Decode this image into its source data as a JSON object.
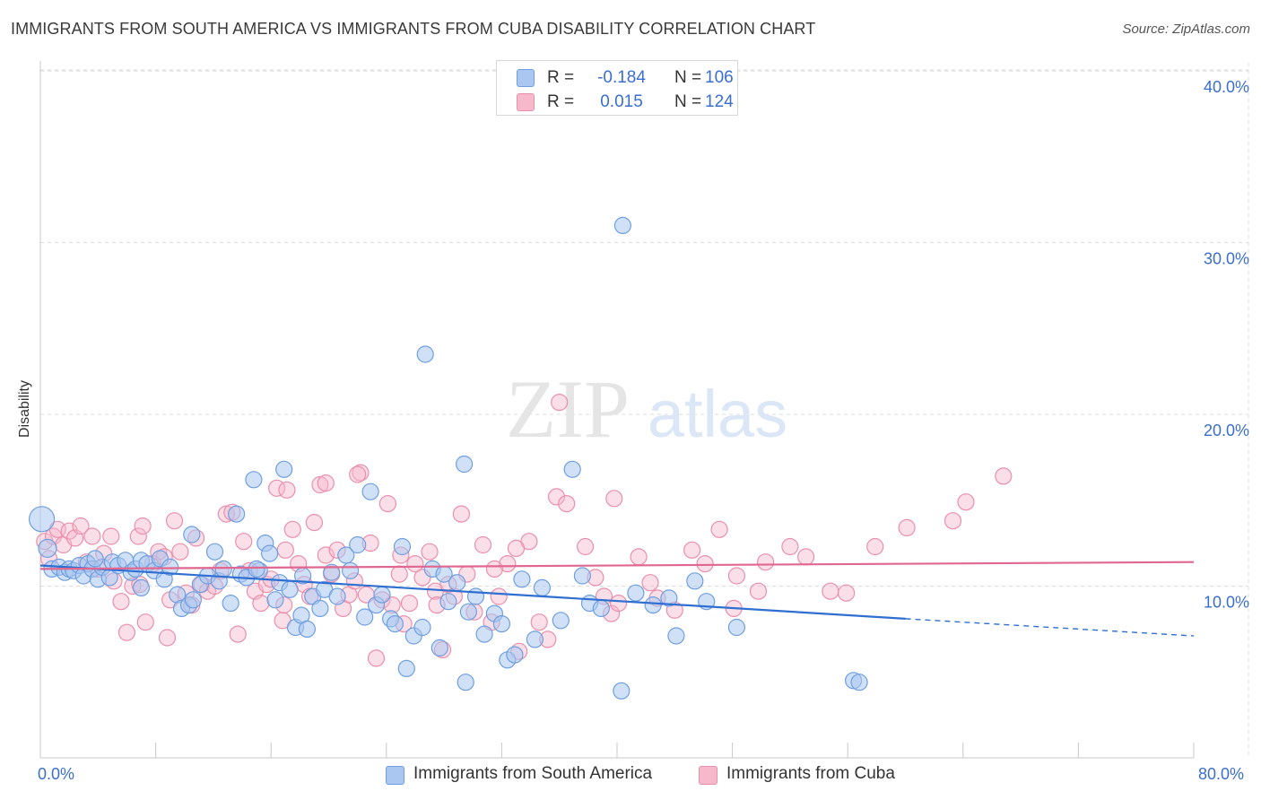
{
  "header": {
    "title": "IMMIGRANTS FROM SOUTH AMERICA VS IMMIGRANTS FROM CUBA DISABILITY CORRELATION CHART",
    "source": "Source: ZipAtlas.com"
  },
  "watermark": {
    "zip": "ZIP",
    "atlas": "atlas"
  },
  "colors": {
    "blue_fill": "#a9c7f0",
    "blue_stroke": "#6f9fe0",
    "blue_line": "#2f6fd1",
    "pink_fill": "#f6b9cc",
    "pink_stroke": "#ea8fab",
    "pink_line": "#e0678f",
    "axis_text": "#3a6ecf",
    "grid": "#dddddd"
  },
  "legend_top": {
    "rows": [
      {
        "r_label": "R =",
        "r_value": "-0.184",
        "n_label": "N =",
        "n_value": "106"
      },
      {
        "r_label": "R =",
        "r_value": "0.015",
        "n_label": "N =",
        "n_value": "124"
      }
    ]
  },
  "legend_bottom": {
    "items": [
      {
        "label": "Immigrants from South America"
      },
      {
        "label": "Immigrants from Cuba"
      }
    ]
  },
  "chart_data": {
    "type": "scatter",
    "title": "IMMIGRANTS FROM SOUTH AMERICA VS IMMIGRANTS FROM CUBA DISABILITY CORRELATION CHART",
    "xlabel": "",
    "ylabel": "Disability",
    "xlim": [
      0,
      80
    ],
    "ylim": [
      0,
      42
    ],
    "x_tick_labels": [
      "0.0%",
      "80.0%"
    ],
    "y_ticks": [
      10,
      20,
      30,
      40
    ],
    "y_tick_labels": [
      "10.0%",
      "20.0%",
      "30.0%",
      "40.0%"
    ],
    "grid": true,
    "legend_position": "top-center",
    "series": [
      {
        "name": "Immigrants from South America",
        "color": "#a9c7f0",
        "trend": {
          "x0": 0,
          "y0": 11.2,
          "x1": 60,
          "y1": 8.1,
          "dash_to_x": 80,
          "dash_to_y": 7.1
        },
        "points": [
          [
            0.1,
            13.9,
            14
          ],
          [
            0.5,
            12.2,
            10
          ],
          [
            0.8,
            11.0,
            9
          ],
          [
            1.3,
            11.1,
            9
          ],
          [
            1.7,
            10.8,
            9
          ],
          [
            2.0,
            11.0,
            9
          ],
          [
            2.3,
            10.9,
            9
          ],
          [
            2.7,
            11.2,
            9
          ],
          [
            3.0,
            10.6,
            9
          ],
          [
            3.3,
            11.3,
            9
          ],
          [
            3.6,
            11.0,
            9
          ],
          [
            4.0,
            10.4,
            9
          ],
          [
            4.3,
            11.1,
            9
          ],
          [
            4.8,
            10.5,
            9
          ],
          [
            5.0,
            11.4,
            9
          ],
          [
            5.4,
            11.2,
            9
          ],
          [
            5.9,
            11.5,
            9
          ],
          [
            6.3,
            10.8,
            9
          ],
          [
            6.6,
            11.0,
            9
          ],
          [
            7.0,
            11.5,
            9
          ],
          [
            7.4,
            11.3,
            9
          ],
          [
            7.9,
            10.9,
            9
          ],
          [
            8.3,
            11.6,
            9
          ],
          [
            8.6,
            10.4,
            9
          ],
          [
            9.0,
            11.1,
            9
          ],
          [
            9.5,
            9.5,
            9
          ],
          [
            9.8,
            8.7,
            9
          ],
          [
            10.3,
            8.9,
            9
          ],
          [
            10.6,
            9.2,
            9
          ],
          [
            11.1,
            10.1,
            9
          ],
          [
            11.6,
            10.6,
            9
          ],
          [
            12.1,
            12.0,
            9
          ],
          [
            12.4,
            10.3,
            9
          ],
          [
            12.7,
            11.0,
            9
          ],
          [
            13.2,
            9.0,
            9
          ],
          [
            13.6,
            14.2,
            9
          ],
          [
            13.9,
            10.7,
            9
          ],
          [
            14.3,
            10.5,
            9
          ],
          [
            14.8,
            16.2,
            9
          ],
          [
            15.2,
            10.9,
            9
          ],
          [
            15.6,
            12.5,
            9
          ],
          [
            15.9,
            11.9,
            9
          ],
          [
            16.3,
            9.2,
            9
          ],
          [
            16.6,
            10.2,
            9
          ],
          [
            16.9,
            16.8,
            9
          ],
          [
            17.3,
            9.8,
            9
          ],
          [
            17.7,
            7.6,
            9
          ],
          [
            18.1,
            8.3,
            9
          ],
          [
            18.5,
            7.5,
            9
          ],
          [
            18.9,
            9.4,
            9
          ],
          [
            19.4,
            8.7,
            9
          ],
          [
            19.7,
            9.8,
            9
          ],
          [
            20.2,
            10.8,
            9
          ],
          [
            20.6,
            9.4,
            9
          ],
          [
            21.2,
            11.8,
            9
          ],
          [
            21.5,
            10.9,
            9
          ],
          [
            22.0,
            12.4,
            9
          ],
          [
            22.5,
            8.2,
            9
          ],
          [
            22.9,
            15.5,
            9
          ],
          [
            23.3,
            8.9,
            9
          ],
          [
            23.7,
            9.5,
            9
          ],
          [
            24.3,
            8.1,
            9
          ],
          [
            24.6,
            7.8,
            9
          ],
          [
            25.1,
            12.3,
            9
          ],
          [
            25.4,
            5.2,
            9
          ],
          [
            25.9,
            7.1,
            9
          ],
          [
            26.5,
            7.6,
            9
          ],
          [
            27.2,
            11.0,
            9
          ],
          [
            27.7,
            6.4,
            9
          ],
          [
            28.0,
            10.7,
            9
          ],
          [
            28.3,
            9.1,
            9
          ],
          [
            28.9,
            10.2,
            9
          ],
          [
            29.5,
            4.4,
            9
          ],
          [
            29.7,
            8.5,
            9
          ],
          [
            30.2,
            9.4,
            9
          ],
          [
            30.8,
            7.2,
            9
          ],
          [
            31.5,
            8.4,
            9
          ],
          [
            32.0,
            7.8,
            9
          ],
          [
            32.4,
            5.7,
            9
          ],
          [
            32.9,
            6.0,
            9
          ],
          [
            33.4,
            10.4,
            9
          ],
          [
            34.3,
            6.9,
            9
          ],
          [
            34.8,
            9.9,
            9
          ],
          [
            36.1,
            8.0,
            9
          ],
          [
            36.9,
            16.8,
            9
          ],
          [
            37.6,
            10.6,
            9
          ],
          [
            38.1,
            9.0,
            9
          ],
          [
            38.9,
            8.7,
            9
          ],
          [
            40.3,
            3.9,
            9
          ],
          [
            41.3,
            9.6,
            9
          ],
          [
            42.5,
            8.9,
            9
          ],
          [
            43.6,
            9.3,
            9
          ],
          [
            44.1,
            7.1,
            9
          ],
          [
            45.4,
            10.3,
            9
          ],
          [
            46.2,
            9.1,
            9
          ],
          [
            48.3,
            7.6,
            9
          ],
          [
            26.7,
            23.5,
            9
          ],
          [
            40.4,
            31.0,
            9
          ],
          [
            29.4,
            17.1,
            9
          ],
          [
            56.4,
            4.5,
            9
          ],
          [
            56.8,
            4.4,
            9
          ],
          [
            10.5,
            13.0,
            9
          ],
          [
            7.0,
            9.9,
            9
          ],
          [
            15.0,
            11.0,
            9
          ],
          [
            3.8,
            11.6,
            9
          ],
          [
            18.2,
            10.6,
            9
          ]
        ]
      },
      {
        "name": "Immigrants from Cuba",
        "color": "#f6b9cc",
        "trend": {
          "x0": 0,
          "y0": 11.0,
          "x1": 80,
          "y1": 11.4
        },
        "points": [
          [
            0.3,
            12.6,
            9
          ],
          [
            0.6,
            11.6,
            9
          ],
          [
            0.9,
            12.9,
            9
          ],
          [
            1.2,
            13.3,
            9
          ],
          [
            1.6,
            12.4,
            9
          ],
          [
            2.0,
            13.2,
            9
          ],
          [
            2.4,
            12.8,
            9
          ],
          [
            2.8,
            13.5,
            9
          ],
          [
            3.2,
            11.4,
            9
          ],
          [
            3.6,
            12.9,
            9
          ],
          [
            4.0,
            11.0,
            9
          ],
          [
            4.4,
            11.9,
            9
          ],
          [
            4.9,
            12.9,
            9
          ],
          [
            5.1,
            10.3,
            9
          ],
          [
            5.6,
            9.1,
            9
          ],
          [
            6.0,
            7.3,
            9
          ],
          [
            6.4,
            10.0,
            9
          ],
          [
            6.8,
            12.9,
            9
          ],
          [
            7.1,
            13.5,
            9
          ],
          [
            7.3,
            7.9,
            9
          ],
          [
            7.8,
            11.3,
            9
          ],
          [
            8.2,
            12.0,
            9
          ],
          [
            8.6,
            11.7,
            9
          ],
          [
            9.0,
            9.2,
            9
          ],
          [
            9.3,
            13.8,
            9
          ],
          [
            9.7,
            12.0,
            9
          ],
          [
            10.1,
            9.6,
            9
          ],
          [
            10.5,
            8.9,
            9
          ],
          [
            10.8,
            12.8,
            9
          ],
          [
            11.2,
            10.1,
            9
          ],
          [
            11.6,
            9.7,
            9
          ],
          [
            12.1,
            10.0,
            9
          ],
          [
            12.5,
            10.9,
            9
          ],
          [
            12.9,
            14.2,
            9
          ],
          [
            13.3,
            14.3,
            9
          ],
          [
            13.7,
            7.2,
            9
          ],
          [
            14.1,
            12.6,
            9
          ],
          [
            14.5,
            10.9,
            9
          ],
          [
            14.9,
            9.7,
            9
          ],
          [
            15.3,
            9.0,
            9
          ],
          [
            15.7,
            10.1,
            9
          ],
          [
            16.0,
            10.4,
            9
          ],
          [
            16.4,
            15.7,
            9
          ],
          [
            16.8,
            8.0,
            9
          ],
          [
            17.1,
            15.6,
            9
          ],
          [
            17.5,
            13.3,
            9
          ],
          [
            17.9,
            11.3,
            9
          ],
          [
            18.3,
            10.1,
            9
          ],
          [
            18.7,
            9.4,
            9
          ],
          [
            19.0,
            13.7,
            9
          ],
          [
            19.4,
            15.9,
            9
          ],
          [
            19.8,
            11.8,
            9
          ],
          [
            20.2,
            10.7,
            9
          ],
          [
            20.6,
            12.1,
            9
          ],
          [
            21.0,
            8.7,
            9
          ],
          [
            21.4,
            9.5,
            9
          ],
          [
            21.8,
            10.3,
            9
          ],
          [
            22.2,
            16.6,
            9
          ],
          [
            22.6,
            9.5,
            9
          ],
          [
            22.9,
            12.5,
            9
          ],
          [
            23.3,
            5.8,
            9
          ],
          [
            23.7,
            9.2,
            9
          ],
          [
            24.1,
            14.8,
            9
          ],
          [
            24.4,
            8.9,
            9
          ],
          [
            24.9,
            10.7,
            9
          ],
          [
            25.2,
            7.8,
            9
          ],
          [
            25.6,
            9.0,
            9
          ],
          [
            26.0,
            11.3,
            9
          ],
          [
            26.5,
            10.5,
            9
          ],
          [
            27.0,
            12.0,
            9
          ],
          [
            27.4,
            9.7,
            9
          ],
          [
            27.9,
            6.3,
            9
          ],
          [
            28.3,
            10.1,
            9
          ],
          [
            28.7,
            9.4,
            9
          ],
          [
            29.2,
            14.2,
            9
          ],
          [
            29.6,
            10.7,
            9
          ],
          [
            30.1,
            8.5,
            9
          ],
          [
            30.7,
            12.4,
            9
          ],
          [
            31.3,
            7.9,
            9
          ],
          [
            31.8,
            9.4,
            9
          ],
          [
            32.4,
            11.3,
            9
          ],
          [
            33.2,
            6.2,
            9
          ],
          [
            33.9,
            12.6,
            9
          ],
          [
            34.6,
            7.9,
            9
          ],
          [
            35.2,
            6.9,
            9
          ],
          [
            35.8,
            15.2,
            9
          ],
          [
            36.5,
            14.8,
            9
          ],
          [
            37.8,
            12.3,
            9
          ],
          [
            38.5,
            10.5,
            9
          ],
          [
            39.1,
            9.4,
            9
          ],
          [
            39.6,
            8.4,
            9
          ],
          [
            40.1,
            9.0,
            9
          ],
          [
            41.5,
            11.7,
            9
          ],
          [
            42.3,
            10.2,
            9
          ],
          [
            42.8,
            9.3,
            9
          ],
          [
            44.0,
            8.6,
            9
          ],
          [
            45.2,
            12.1,
            9
          ],
          [
            46.1,
            11.3,
            9
          ],
          [
            47.1,
            13.3,
            9
          ],
          [
            48.1,
            8.7,
            9
          ],
          [
            48.3,
            10.6,
            9
          ],
          [
            49.8,
            9.7,
            9
          ],
          [
            50.3,
            11.4,
            9
          ],
          [
            52.0,
            12.3,
            9
          ],
          [
            53.1,
            11.7,
            9
          ],
          [
            54.8,
            9.7,
            9
          ],
          [
            55.9,
            9.6,
            9
          ],
          [
            57.9,
            12.3,
            9
          ],
          [
            60.1,
            13.4,
            9
          ],
          [
            63.3,
            13.8,
            9
          ],
          [
            64.2,
            14.9,
            9
          ],
          [
            66.8,
            16.4,
            9
          ],
          [
            36.0,
            20.7,
            9
          ],
          [
            39.8,
            15.1,
            9
          ],
          [
            22.0,
            16.5,
            9
          ],
          [
            17.0,
            12.1,
            9
          ],
          [
            19.8,
            16.0,
            9
          ],
          [
            25.0,
            11.8,
            9
          ],
          [
            27.5,
            8.9,
            9
          ],
          [
            33.0,
            12.2,
            9
          ],
          [
            6.9,
            10.1,
            9
          ],
          [
            8.8,
            7.0,
            9
          ],
          [
            16.9,
            8.9,
            9
          ],
          [
            31.5,
            11.0,
            9
          ]
        ]
      }
    ]
  }
}
